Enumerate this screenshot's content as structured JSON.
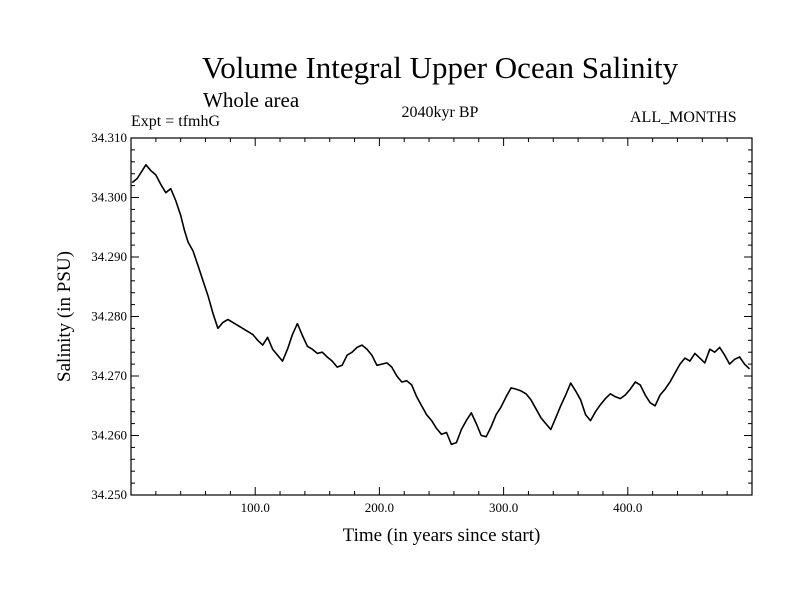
{
  "chart_data": {
    "type": "line",
    "title": "Volume Integral Upper Ocean Salinity",
    "subtitle": "Whole area",
    "experiment": "Expt = tfmhG",
    "period": "2040kyr BP",
    "months": "ALL_MONTHS",
    "xlabel": "Time (in years since start)",
    "ylabel": "Salinity (in PSU)",
    "xlim": [
      0,
      500
    ],
    "ylim": [
      34.25,
      34.31
    ],
    "xticks_major": [
      100,
      200,
      300,
      400
    ],
    "xtick_labels": [
      "100.0",
      "200.0",
      "300.0",
      "400.0"
    ],
    "yticks_major": [
      34.25,
      34.26,
      34.27,
      34.28,
      34.29,
      34.3,
      34.31
    ],
    "ytick_labels": [
      "34.250",
      "34.260",
      "34.270",
      "34.280",
      "34.290",
      "34.300",
      "34.310"
    ],
    "grid": false,
    "series": [
      {
        "name": "Salinity",
        "color": "#000000",
        "x": [
          1,
          5,
          9,
          12,
          16,
          20,
          24,
          28,
          32,
          36,
          40,
          43,
          46,
          50,
          54,
          58,
          62,
          66,
          70,
          74,
          78,
          82,
          86,
          90,
          94,
          98,
          102,
          106,
          110,
          114,
          118,
          122,
          126,
          130,
          134,
          138,
          142,
          146,
          150,
          154,
          158,
          162,
          166,
          170,
          174,
          178,
          182,
          186,
          190,
          194,
          198,
          202,
          206,
          210,
          214,
          218,
          222,
          226,
          230,
          234,
          238,
          242,
          246,
          250,
          254,
          258,
          262,
          266,
          270,
          274,
          278,
          282,
          286,
          290,
          294,
          298,
          302,
          306,
          310,
          314,
          318,
          322,
          326,
          330,
          334,
          338,
          342,
          346,
          350,
          354,
          358,
          362,
          366,
          370,
          374,
          378,
          382,
          386,
          390,
          394,
          398,
          402,
          406,
          410,
          414,
          418,
          422,
          426,
          430,
          434,
          438,
          442,
          446,
          450,
          454,
          458,
          462,
          466,
          470,
          474,
          478,
          482,
          486,
          490,
          494,
          498
        ],
        "values": [
          34.3025,
          34.3032,
          34.3045,
          34.3055,
          34.3045,
          34.3038,
          34.3022,
          34.3008,
          34.3015,
          34.2995,
          34.297,
          34.2945,
          34.2925,
          34.291,
          34.2885,
          34.286,
          34.2835,
          34.2805,
          34.278,
          34.279,
          34.2795,
          34.279,
          34.2785,
          34.278,
          34.2775,
          34.277,
          34.276,
          34.2752,
          34.2765,
          34.2745,
          34.2735,
          34.2725,
          34.2745,
          34.277,
          34.2788,
          34.2768,
          34.275,
          34.2745,
          34.2738,
          34.274,
          34.2732,
          34.2725,
          34.2715,
          34.2718,
          34.2735,
          34.274,
          34.2748,
          34.2752,
          34.2745,
          34.2735,
          34.2718,
          34.272,
          34.2722,
          34.2715,
          34.27,
          34.269,
          34.2692,
          34.2685,
          34.2665,
          34.265,
          34.2635,
          34.2625,
          34.2612,
          34.2602,
          34.2605,
          34.2585,
          34.2588,
          34.261,
          34.2625,
          34.2638,
          34.262,
          34.26,
          34.2598,
          34.2615,
          34.2635,
          34.2648,
          34.2665,
          34.268,
          34.2678,
          34.2675,
          34.267,
          34.266,
          34.2645,
          34.263,
          34.262,
          34.261,
          34.263,
          34.265,
          34.2668,
          34.2688,
          34.2675,
          34.266,
          34.2635,
          34.2625,
          34.264,
          34.2652,
          34.2662,
          34.267,
          34.2665,
          34.2662,
          34.2668,
          34.2678,
          34.269,
          34.2685,
          34.2668,
          34.2655,
          34.265,
          34.2668,
          34.2678,
          34.269,
          34.2705,
          34.272,
          34.273,
          34.2725,
          34.2738,
          34.273,
          34.2722,
          34.2745,
          34.274,
          34.2748,
          34.2735,
          34.272,
          34.2728,
          34.2732,
          34.272,
          34.2712
        ]
      }
    ]
  }
}
